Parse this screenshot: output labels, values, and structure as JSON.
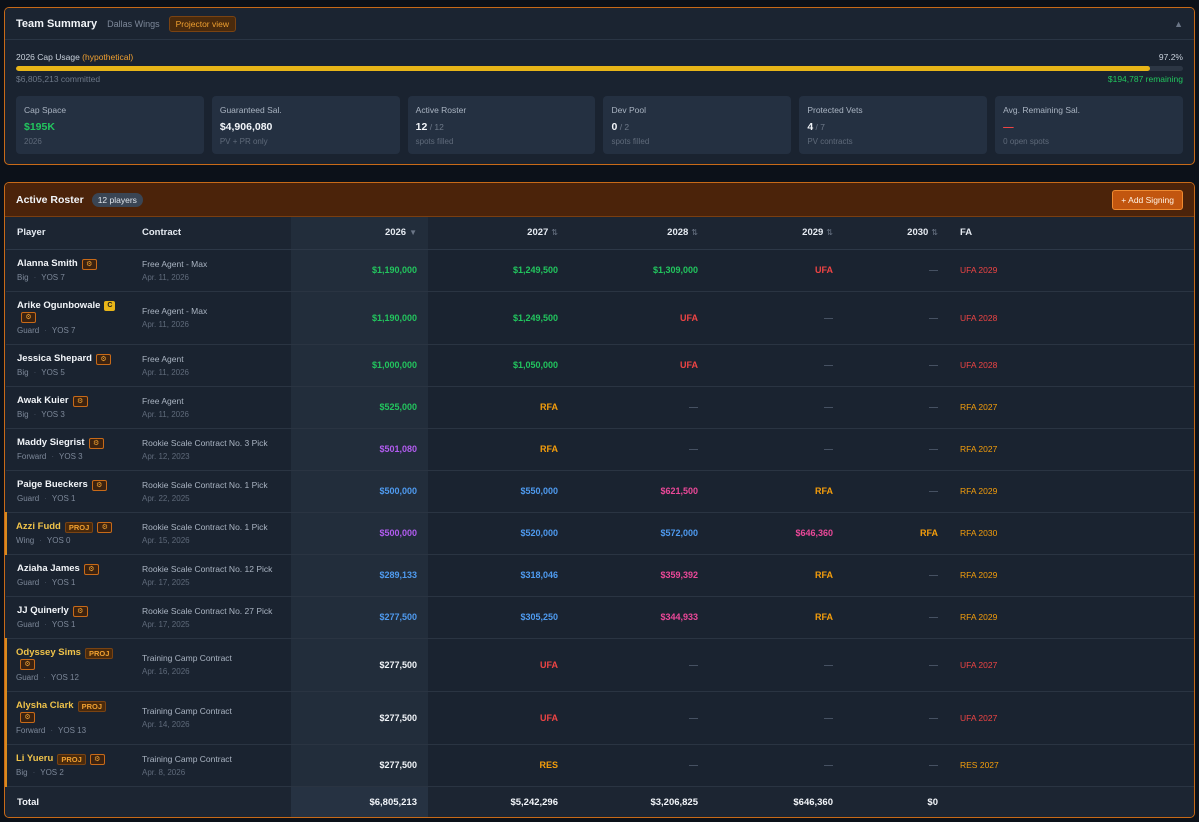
{
  "summary": {
    "title": "Team Summary",
    "team": "Dallas Wings",
    "view_chip": "Projector view",
    "collapse_icon": "▲",
    "cap_label": "2026 Cap Usage",
    "cap_hypothetical": "(hypothetical)",
    "cap_pct": "97.2%",
    "cap_fill_fraction": 0.972,
    "committed": "$6,805,213 committed",
    "remaining": "$194,787 remaining",
    "cards": [
      {
        "label": "Cap Space",
        "value": "$195K",
        "of": "",
        "sub": "2026",
        "tone": "green"
      },
      {
        "label": "Guaranteed Sal.",
        "value": "$4,906,080",
        "of": "",
        "sub": "PV + PR only",
        "tone": ""
      },
      {
        "label": "Active Roster",
        "value": "12",
        "of": " / 12",
        "sub": "spots filled",
        "tone": ""
      },
      {
        "label": "Dev Pool",
        "value": "0",
        "of": " / 2",
        "sub": "spots filled",
        "tone": ""
      },
      {
        "label": "Protected Vets",
        "value": "4",
        "of": " / 7",
        "sub": "PV contracts",
        "tone": ""
      },
      {
        "label": "Avg. Remaining Sal.",
        "value": "—",
        "of": "",
        "sub": "0 open spots",
        "tone": "red"
      }
    ]
  },
  "roster": {
    "title": "Active Roster",
    "count": "12 players",
    "add_button": "+ Add Signing",
    "headers": {
      "player": "Player",
      "contract": "Contract",
      "y2026": "2026",
      "y2027": "2027",
      "y2028": "2028",
      "y2029": "2029",
      "y2030": "2030",
      "fa": "FA",
      "sort_active": "▼",
      "sort_idle": "⇅"
    },
    "rows": [
      {
        "name": "Alanna Smith",
        "captain": false,
        "proj": false,
        "pos": "Big",
        "yos": "YOS 7",
        "contract": "Free Agent - Max",
        "date": "Apr. 11, 2026",
        "y": [
          [
            "$1,190,000",
            "green"
          ],
          [
            "$1,249,500",
            "green"
          ],
          [
            "$1,309,000",
            "green"
          ],
          [
            "UFA",
            "red"
          ],
          [
            "—",
            "muted"
          ]
        ],
        "fa": [
          "UFA 2029",
          "fa-red"
        ]
      },
      {
        "name": "Arike Ogunbowale",
        "captain": true,
        "proj": false,
        "pos": "Guard",
        "yos": "YOS 7",
        "contract": "Free Agent - Max",
        "date": "Apr. 11, 2026",
        "y": [
          [
            "$1,190,000",
            "green"
          ],
          [
            "$1,249,500",
            "green"
          ],
          [
            "UFA",
            "red"
          ],
          [
            "—",
            "muted"
          ],
          [
            "—",
            "muted"
          ]
        ],
        "fa": [
          "UFA 2028",
          "fa-red"
        ]
      },
      {
        "name": "Jessica Shepard",
        "captain": false,
        "proj": false,
        "pos": "Big",
        "yos": "YOS 5",
        "contract": "Free Agent",
        "date": "Apr. 11, 2026",
        "y": [
          [
            "$1,000,000",
            "green"
          ],
          [
            "$1,050,000",
            "green"
          ],
          [
            "UFA",
            "red"
          ],
          [
            "—",
            "muted"
          ],
          [
            "—",
            "muted"
          ]
        ],
        "fa": [
          "UFA 2028",
          "fa-red"
        ]
      },
      {
        "name": "Awak Kuier",
        "captain": false,
        "proj": false,
        "pos": "Big",
        "yos": "YOS 3",
        "contract": "Free Agent",
        "date": "Apr. 11, 2026",
        "y": [
          [
            "$525,000",
            "green"
          ],
          [
            "RFA",
            "orange"
          ],
          [
            "—",
            "muted"
          ],
          [
            "—",
            "muted"
          ],
          [
            "—",
            "muted"
          ]
        ],
        "fa": [
          "RFA 2027",
          "fa-yellow"
        ]
      },
      {
        "name": "Maddy Siegrist",
        "captain": false,
        "proj": false,
        "pos": "Forward",
        "yos": "YOS 3",
        "contract": "Rookie Scale Contract No. 3 Pick",
        "date": "Apr. 12, 2023",
        "y": [
          [
            "$501,080",
            "purple"
          ],
          [
            "RFA",
            "orange"
          ],
          [
            "—",
            "muted"
          ],
          [
            "—",
            "muted"
          ],
          [
            "—",
            "muted"
          ]
        ],
        "fa": [
          "RFA 2027",
          "fa-yellow"
        ]
      },
      {
        "name": "Paige Bueckers",
        "captain": false,
        "proj": false,
        "pos": "Guard",
        "yos": "YOS 1",
        "contract": "Rookie Scale Contract No. 1 Pick",
        "date": "Apr. 22, 2025",
        "y": [
          [
            "$500,000",
            "blue"
          ],
          [
            "$550,000",
            "blue"
          ],
          [
            "$621,500",
            "pink"
          ],
          [
            "RFA",
            "orange"
          ],
          [
            "—",
            "muted"
          ]
        ],
        "fa": [
          "RFA 2029",
          "fa-yellow"
        ]
      },
      {
        "name": "Azzi Fudd",
        "captain": false,
        "proj": true,
        "pos": "Wing",
        "yos": "YOS 0",
        "contract": "Rookie Scale Contract No. 1 Pick",
        "date": "Apr. 15, 2026",
        "y": [
          [
            "$500,000",
            "purple"
          ],
          [
            "$520,000",
            "blue"
          ],
          [
            "$572,000",
            "blue"
          ],
          [
            "$646,360",
            "pink"
          ],
          [
            "RFA",
            "orange"
          ]
        ],
        "fa": [
          "RFA 2030",
          "fa-yellow"
        ]
      },
      {
        "name": "Aziaha James",
        "captain": false,
        "proj": false,
        "pos": "Guard",
        "yos": "YOS 1",
        "contract": "Rookie Scale Contract No. 12 Pick",
        "date": "Apr. 17, 2025",
        "y": [
          [
            "$289,133",
            "blue"
          ],
          [
            "$318,046",
            "blue"
          ],
          [
            "$359,392",
            "pink"
          ],
          [
            "RFA",
            "orange"
          ],
          [
            "—",
            "muted"
          ]
        ],
        "fa": [
          "RFA 2029",
          "fa-yellow"
        ]
      },
      {
        "name": "JJ Quinerly",
        "captain": false,
        "proj": false,
        "pos": "Guard",
        "yos": "YOS 1",
        "contract": "Rookie Scale Contract No. 27 Pick",
        "date": "Apr. 17, 2025",
        "y": [
          [
            "$277,500",
            "blue"
          ],
          [
            "$305,250",
            "blue"
          ],
          [
            "$344,933",
            "pink"
          ],
          [
            "RFA",
            "orange"
          ],
          [
            "—",
            "muted"
          ]
        ],
        "fa": [
          "RFA 2029",
          "fa-yellow"
        ]
      },
      {
        "name": "Odyssey Sims",
        "captain": false,
        "proj": true,
        "pos": "Guard",
        "yos": "YOS 12",
        "contract": "Training Camp Contract",
        "date": "Apr. 16, 2026",
        "y": [
          [
            "$277,500",
            "white"
          ],
          [
            "UFA",
            "red"
          ],
          [
            "—",
            "muted"
          ],
          [
            "—",
            "muted"
          ],
          [
            "—",
            "muted"
          ]
        ],
        "fa": [
          "UFA 2027",
          "fa-red"
        ]
      },
      {
        "name": "Alysha Clark",
        "captain": false,
        "proj": true,
        "pos": "Forward",
        "yos": "YOS 13",
        "contract": "Training Camp Contract",
        "date": "Apr. 14, 2026",
        "y": [
          [
            "$277,500",
            "white"
          ],
          [
            "UFA",
            "red"
          ],
          [
            "—",
            "muted"
          ],
          [
            "—",
            "muted"
          ],
          [
            "—",
            "muted"
          ]
        ],
        "fa": [
          "UFA 2027",
          "fa-red"
        ]
      },
      {
        "name": "Li Yueru",
        "captain": false,
        "proj": true,
        "pos": "Big",
        "yos": "YOS 2",
        "contract": "Training Camp Contract",
        "date": "Apr. 8, 2026",
        "y": [
          [
            "$277,500",
            "white"
          ],
          [
            "RES",
            "orange"
          ],
          [
            "—",
            "muted"
          ],
          [
            "—",
            "muted"
          ],
          [
            "—",
            "muted"
          ]
        ],
        "fa": [
          "RES 2027",
          "fa-yellow"
        ]
      }
    ],
    "total": {
      "label": "Total",
      "y2026": "$6,805,213",
      "y2027": "$5,242,296",
      "y2028": "$3,206,825",
      "y2029": "$646,360",
      "y2030": "$0"
    },
    "captain_badge": "C",
    "proj_tag": "PROJ",
    "gear_glyph": "⚙",
    "colors": {
      "accent": "#c86a18",
      "green": "#22c55e",
      "blue": "#4f9bf0",
      "purple": "#b25cf0",
      "pink": "#ec4899",
      "red": "#ef4444",
      "orange": "#f59e0b"
    }
  }
}
